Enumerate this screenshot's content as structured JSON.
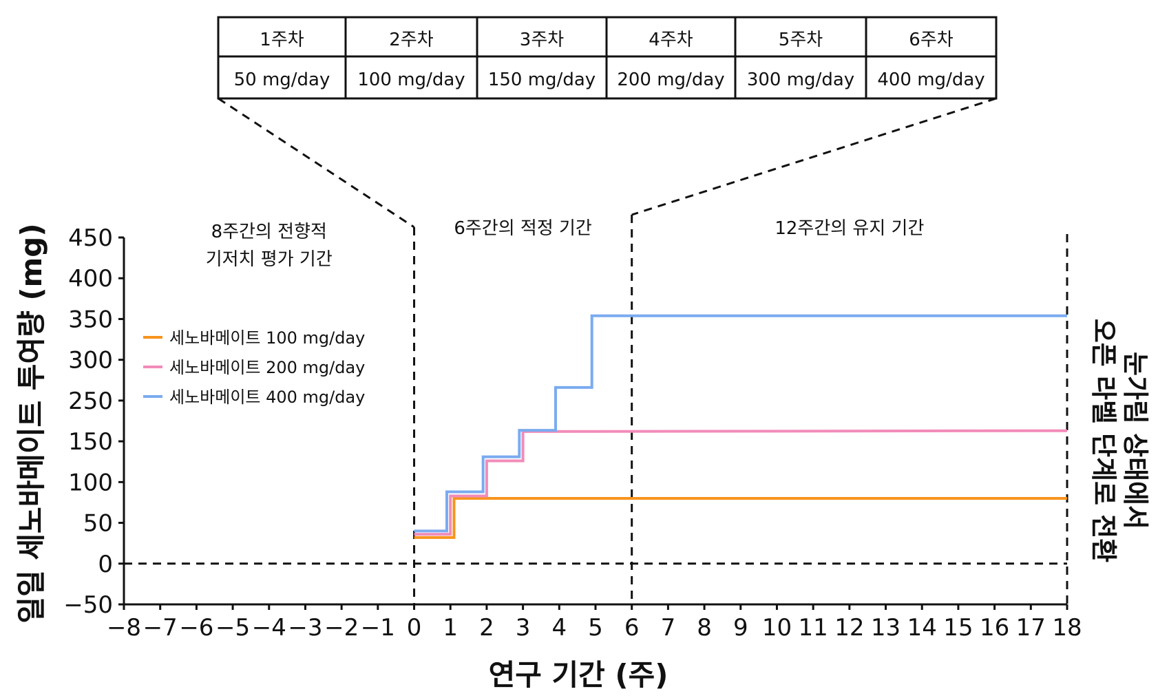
{
  "chart_data": {
    "type": "line",
    "xlabel": "연구 기간 (주)",
    "ylabel": "일일 세노바메이트 투여량 (mg)",
    "xlim": [
      -8,
      18
    ],
    "ylim": [
      -50,
      450
    ],
    "xticks": [
      -8,
      -7,
      -6,
      -5,
      -4,
      -3,
      -2,
      -1,
      0,
      1,
      2,
      3,
      4,
      5,
      6,
      7,
      8,
      9,
      10,
      11,
      12,
      13,
      14,
      15,
      16,
      17,
      18
    ],
    "xtick_labels": [
      "−8",
      "−7",
      "−6",
      "−5",
      "−4",
      "−3",
      "−2",
      "−1",
      "0",
      "1",
      "2",
      "3",
      "4",
      "5",
      "6",
      "7",
      "8",
      "9",
      "10",
      "11",
      "12",
      "13",
      "14",
      "15",
      "16",
      "17",
      "18"
    ],
    "yticks": [
      -50,
      0,
      50,
      100,
      150,
      250,
      300,
      350,
      400,
      450
    ],
    "ytick_labels": [
      "−50",
      "0",
      "50",
      "100",
      "150",
      "250",
      "300",
      "350",
      "400",
      "450"
    ],
    "grid": false,
    "legend_position": "left-middle",
    "series": [
      {
        "name": "세노바메이트 100 mg/day",
        "color": "#f7941d",
        "x": [
          0,
          1.1,
          1.1,
          18
        ],
        "y": [
          32,
          32,
          80,
          80
        ]
      },
      {
        "name": "세노바메이트 200 mg/day",
        "color": "#f28cb9",
        "x": [
          0,
          1,
          1,
          2,
          2,
          3,
          3,
          18
        ],
        "y": [
          36,
          36,
          83,
          83,
          126,
          126,
          174,
          176
        ]
      },
      {
        "name": "세노바메이트 400 mg/day",
        "color": "#7aabf0",
        "x": [
          0,
          0.9,
          0.9,
          1.9,
          1.9,
          2.9,
          2.9,
          3.9,
          3.9,
          4.9,
          4.9,
          18
        ],
        "y": [
          40,
          40,
          88,
          88,
          131,
          131,
          177,
          177,
          266,
          266,
          354,
          354
        ]
      }
    ],
    "reference_lines": [
      {
        "axis": "y",
        "value": 0,
        "style": "dashed"
      },
      {
        "axis": "x",
        "value": 0,
        "style": "dashed"
      },
      {
        "axis": "x",
        "value": 6,
        "style": "dashed"
      },
      {
        "axis": "x",
        "value": 18,
        "style": "dashed"
      }
    ],
    "annotations": {
      "periods": [
        {
          "lines": [
            "8주간의 전향적",
            "기저치 평가 기간"
          ],
          "x": -4
        },
        {
          "lines": [
            "6주간의 적정 기간"
          ],
          "x": 3
        },
        {
          "lines": [
            "12주간의 유지 기간"
          ],
          "x": 12
        }
      ],
      "side_label": [
        "눈가림 상태에서",
        "오픈 라벨 단계로 전환"
      ]
    },
    "table": {
      "headers": [
        "1주차",
        "2주차",
        "3주차",
        "4주차",
        "5주차",
        "6주차"
      ],
      "doses": [
        "50 mg/day",
        "100 mg/day",
        "150 mg/day",
        "200 mg/day",
        "300 mg/day",
        "400 mg/day"
      ]
    }
  }
}
